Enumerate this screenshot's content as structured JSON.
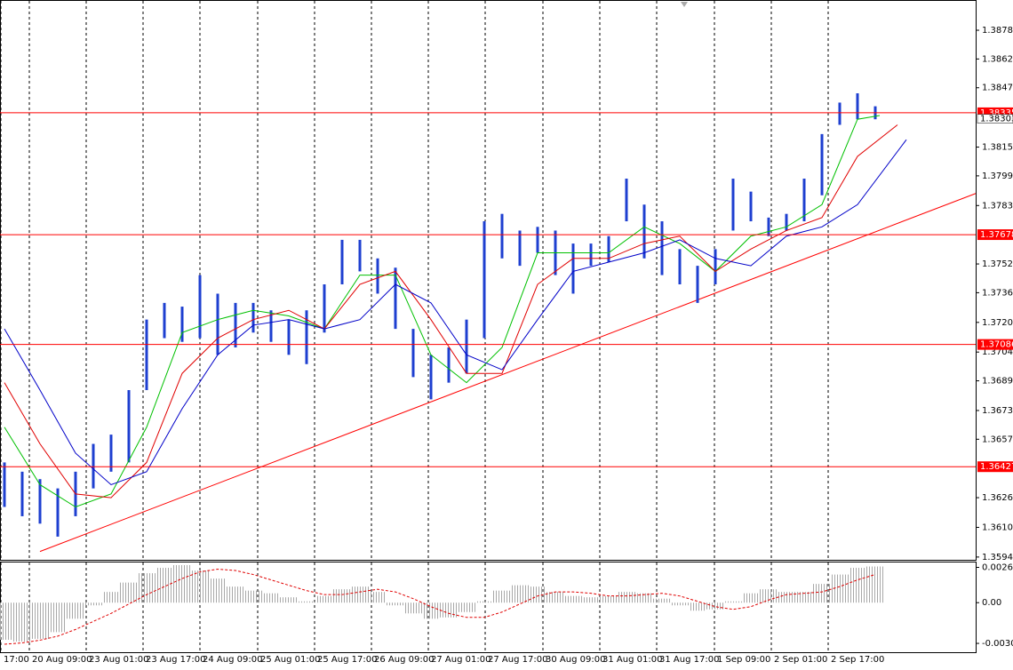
{
  "chart_data": [
    {
      "type": "ohlc",
      "color": "#1e3fd0",
      "grid": true,
      "xlim": [
        -0.25,
        54.65
      ],
      "ylim": [
        1.35925,
        1.38943
      ],
      "xticks": [
        {
          "value": -0.2,
          "label": "17:00"
        },
        {
          "value": 1.4,
          "label": "20 Aug 09:00"
        },
        {
          "value": 4.6,
          "label": "23 Aug 01:00"
        },
        {
          "value": 7.8,
          "label": "23 Aug 17:00"
        },
        {
          "value": 11,
          "label": "24 Aug 09:00"
        },
        {
          "value": 14.25,
          "label": "25 Aug 01:00"
        },
        {
          "value": 17.45,
          "label": "25 Aug 17:00"
        },
        {
          "value": 20.65,
          "label": "26 Aug 09:00"
        },
        {
          "value": 23.85,
          "label": "27 Aug 01:00"
        },
        {
          "value": 27.05,
          "label": "27 Aug 17:00"
        },
        {
          "value": 30.3,
          "label": "30 Aug 09:00"
        },
        {
          "value": 33.5,
          "label": "31 Aug 01:00"
        },
        {
          "value": 36.7,
          "label": "31 Aug 17:00"
        },
        {
          "value": 39.95,
          "label": "1 Sep 09:00"
        },
        {
          "value": 43.15,
          "label": "2 Sep 01:00"
        },
        {
          "value": 46.35,
          "label": "2 Sep 17:00"
        }
      ],
      "yticks": [
        {
          "value": 1.3878,
          "label": "1.38780"
        },
        1.38625,
        {
          "value": 1.3847,
          "label": "1.38470"
        },
        {
          "value": 1.3815,
          "label": "1.38150"
        },
        1.37995,
        1.37835,
        {
          "value": 1.3752,
          "label": "1.37520"
        },
        1.37365,
        1.37205,
        1.37045,
        {
          "value": 1.3689,
          "label": "1.36890"
        },
        {
          "value": 1.3673,
          "label": "1.36730"
        },
        1.36575,
        {
          "value": 1.3626,
          "label": "1.36260"
        },
        {
          "value": 1.361,
          "label": "1.36100"
        },
        {
          "value": 1.3594,
          "label": "1.35940"
        }
      ],
      "high": [
        1.3645,
        1.364,
        1.3636,
        1.3631,
        1.364,
        1.3655,
        1.366,
        1.3684,
        1.3722,
        1.3731,
        1.3729,
        1.3746,
        1.3736,
        1.3731,
        1.3731,
        1.3727,
        1.3722,
        1.3727,
        1.3741,
        1.3765,
        1.3765,
        1.3755,
        1.375,
        1.3717,
        1.3703,
        1.3707,
        1.3722,
        1.3775,
        1.3779,
        1.377,
        1.3772,
        1.377,
        1.3763,
        1.3763,
        1.3767,
        1.3798,
        1.3784,
        1.3775,
        1.376,
        1.3751,
        1.376,
        1.3798,
        1.3791,
        1.3777,
        1.3779,
        1.3798,
        1.3822,
        1.3839,
        1.3844,
        1.3837
      ],
      "low": [
        1.3621,
        1.3616,
        1.3612,
        1.3605,
        1.3616,
        1.3631,
        1.364,
        1.3645,
        1.3684,
        1.3712,
        1.371,
        1.3712,
        1.3703,
        1.3707,
        1.3715,
        1.371,
        1.3703,
        1.3698,
        1.3715,
        1.3741,
        1.3748,
        1.3736,
        1.3717,
        1.3691,
        1.3679,
        1.3688,
        1.3693,
        1.3712,
        1.3755,
        1.3751,
        1.3758,
        1.3746,
        1.3736,
        1.3751,
        1.3753,
        1.3775,
        1.3755,
        1.3746,
        1.3741,
        1.3731,
        1.3741,
        1.377,
        1.3775,
        1.3767,
        1.377,
        1.3775,
        1.3789,
        1.3827,
        1.383,
        1.383
      ],
      "lines": [
        {
          "color": "#00c000",
          "x": [
            0,
            2,
            4,
            6,
            8,
            10,
            12,
            14,
            16,
            18,
            20,
            22,
            24,
            26,
            28,
            30,
            32,
            34,
            36,
            38,
            40,
            42,
            44,
            46,
            48,
            49.25
          ],
          "values": [
            1.3664,
            1.3633,
            1.3621,
            1.3628,
            1.3664,
            1.3715,
            1.3722,
            1.3727,
            1.3724,
            1.3717,
            1.3746,
            1.3746,
            1.3703,
            1.3688,
            1.3707,
            1.3758,
            1.3758,
            1.3758,
            1.3772,
            1.3763,
            1.3748,
            1.3767,
            1.3772,
            1.3784,
            1.383,
            1.3832
          ]
        },
        {
          "color": "#e00000",
          "x": [
            0,
            2,
            4,
            6,
            8,
            10,
            12,
            14,
            16,
            18,
            20,
            22,
            24,
            26,
            28,
            30,
            32,
            34,
            36,
            38,
            40,
            42,
            44,
            46,
            48,
            50.25
          ],
          "values": [
            1.3688,
            1.3655,
            1.3628,
            1.3626,
            1.3645,
            1.3693,
            1.3712,
            1.3722,
            1.3727,
            1.3717,
            1.3741,
            1.3748,
            1.3722,
            1.3693,
            1.3693,
            1.3741,
            1.3755,
            1.3755,
            1.3763,
            1.3767,
            1.3748,
            1.376,
            1.377,
            1.3777,
            1.381,
            1.3827
          ]
        },
        {
          "color": "#0000c8",
          "x": [
            0,
            2,
            4,
            6,
            8,
            10,
            12,
            14,
            16,
            18,
            20,
            22,
            24,
            26,
            28,
            30,
            32,
            34,
            36,
            38,
            40,
            42,
            44,
            46,
            48,
            50.75
          ],
          "values": [
            1.3717,
            1.3684,
            1.365,
            1.3633,
            1.364,
            1.3674,
            1.3703,
            1.3719,
            1.3722,
            1.3717,
            1.3722,
            1.3741,
            1.3731,
            1.3703,
            1.3695,
            1.3722,
            1.3748,
            1.3753,
            1.3758,
            1.3765,
            1.3755,
            1.3751,
            1.3767,
            1.3772,
            1.3784,
            1.3819
          ]
        }
      ],
      "levels": {
        "color": "#ff0000",
        "values": [
          1.38335,
          1.37678,
          1.37086,
          1.36427
        ]
      },
      "current_price": 1.38303,
      "trendline": {
        "color": "#ff0000",
        "x": [
          2,
          54.65
        ],
        "values": [
          1.3597,
          1.379
        ]
      }
    },
    {
      "type": "oscillator",
      "color": "#a8a8a8",
      "xlim": [
        -0.25,
        54.65
      ],
      "ylim": [
        -0.0037,
        0.003
      ],
      "yticks": [
        0.002635,
        {
          "value": 0,
          "label": "0.00"
        },
        -0.00304
      ],
      "values": [
        -0.00277,
        -0.0029,
        -0.0027,
        -0.0022,
        -0.0012,
        -0.0002,
        0.0008,
        0.0015,
        0.0022,
        0.0026,
        0.0028,
        0.0024,
        0.0018,
        0.0012,
        0.0009,
        0.0007,
        0.0004,
        0.0001,
        0.0005,
        0.001,
        0.0012,
        0.0008,
        -0.0002,
        -0.0008,
        -0.0012,
        -0.0011,
        -0.0007,
        0.0001,
        0.0009,
        0.0013,
        0.0012,
        0.0008,
        0.0005,
        0.0004,
        0.0005,
        0.0008,
        0.0007,
        0.0003,
        -0.0002,
        -0.0006,
        -0.0005,
        0.0001,
        0.0007,
        0.001,
        0.0008,
        0.0008,
        0.0014,
        0.0021,
        0.0026,
        0.0027
      ],
      "signal": {
        "color": "#e00000",
        "values": [
          -0.0031,
          -0.003,
          -0.0028,
          -0.0025,
          -0.002,
          -0.0014,
          -0.0008,
          -0.0001,
          0.0006,
          0.0012,
          0.0018,
          0.0023,
          0.0025,
          0.0024,
          0.0021,
          0.0017,
          0.0013,
          0.0009,
          0.0006,
          0.0006,
          0.0008,
          0.001,
          0.0008,
          0.0003,
          -0.0003,
          -0.0008,
          -0.0011,
          -0.0011,
          -0.0007,
          -0.0001,
          0.0005,
          0.0008,
          0.0008,
          0.0007,
          0.0005,
          0.0005,
          0.0006,
          0.0007,
          0.0005,
          0.0001,
          -0.0003,
          -0.0005,
          -0.0003,
          0.0002,
          0.0006,
          0.0007,
          0.0008,
          0.0012,
          0.0017,
          0.0021
        ]
      }
    }
  ]
}
